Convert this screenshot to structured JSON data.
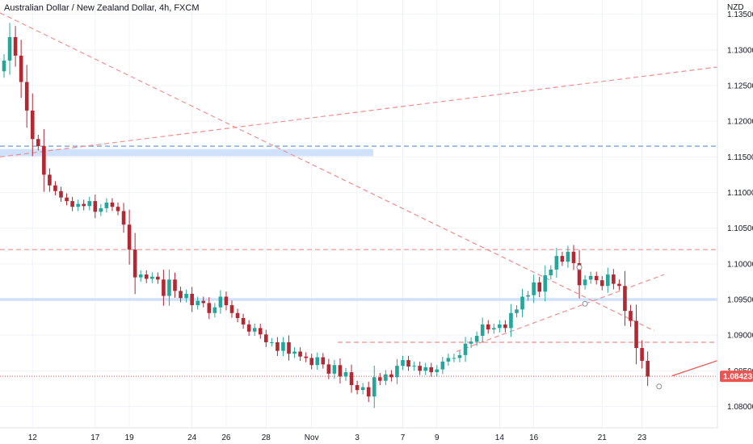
{
  "chart_data": {
    "type": "candlestick",
    "title": "Australian Dollar / New Zealand Dollar, 4h, FXCM",
    "currency_label": "NZD",
    "last_price": "1.08423",
    "ylim": [
      1.077,
      1.137
    ],
    "y_ticks": [
      "1.13500",
      "1.13000",
      "1.12500",
      "1.12000",
      "1.11500",
      "1.11000",
      "1.10500",
      "1.10000",
      "1.09500",
      "1.09000",
      "1.08500",
      "1.08000"
    ],
    "y_tick_values": [
      1.135,
      1.13,
      1.125,
      1.12,
      1.115,
      1.11,
      1.105,
      1.1,
      1.095,
      1.09,
      1.085,
      1.08
    ],
    "x_ticks": [
      "12",
      "17",
      "19",
      "24",
      "26",
      "28",
      "Nov",
      "3",
      "7",
      "9",
      "14",
      "16",
      "21",
      "23"
    ],
    "x_tick_index": [
      5,
      16,
      22,
      33,
      39,
      46,
      54,
      62,
      70,
      76,
      87,
      93,
      105,
      112
    ],
    "grid": true,
    "colors": {
      "up": "#26a69a",
      "down": "#b22833",
      "support": "#cfe1fb",
      "dashed_red": "#f08f8f",
      "dashed_blue": "#5b8dd9",
      "last_price": "#ef5350"
    },
    "closes": [
      1.1285,
      1.1318,
      1.1292,
      1.1255,
      1.1215,
      1.1175,
      1.1165,
      1.1125,
      1.111,
      1.1102,
      1.1093,
      1.1088,
      1.108,
      1.1084,
      1.1081,
      1.1088,
      1.1073,
      1.1078,
      1.1086,
      1.108,
      1.1074,
      1.1055,
      1.102,
      1.0981,
      1.0985,
      1.0979,
      1.0982,
      1.0978,
      1.0955,
      1.0978,
      1.0962,
      1.0952,
      1.0958,
      1.0942,
      1.0948,
      1.0945,
      1.0931,
      1.0939,
      1.0954,
      1.0942,
      1.0931,
      1.0924,
      1.0915,
      1.0905,
      1.091,
      1.0901,
      1.089,
      1.089,
      1.0878,
      1.089,
      1.0874,
      1.0877,
      1.087,
      1.0868,
      1.0858,
      1.0869,
      1.0859,
      1.0846,
      1.0858,
      1.0842,
      1.0848,
      1.083,
      1.0823,
      1.0827,
      1.0814,
      1.0841,
      1.0836,
      1.0845,
      1.0841,
      1.0857,
      1.0865,
      1.0856,
      1.0857,
      1.085,
      1.0855,
      1.0848,
      1.0852,
      1.0863,
      1.0868,
      1.0868,
      1.0872,
      1.0888,
      1.0891,
      1.0899,
      1.0915,
      1.0908,
      1.091,
      1.0915,
      1.091,
      1.0931,
      1.0936,
      1.0954,
      1.0956,
      1.0974,
      1.0961,
      1.0984,
      1.0992,
      1.1011,
      1.1003,
      1.1017,
      1.1001,
      1.097,
      1.0978,
      1.0983,
      1.0977,
      1.0969,
      1.0985,
      1.0972,
      1.0969,
      1.0934,
      1.092,
      1.0882,
      1.0864,
      1.0842
    ]
  }
}
